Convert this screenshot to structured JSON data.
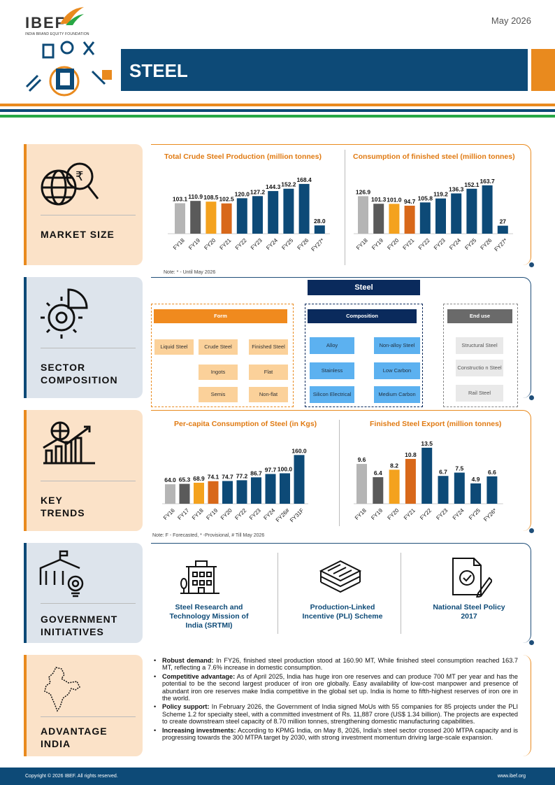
{
  "header": {
    "logo_text": "IBEF",
    "logo_subtitle": "INDIA BRAND EQUITY FOUNDATION",
    "date": "May 2026",
    "title": "STEEL"
  },
  "colors": {
    "navy": "#0d4a77",
    "orange": "#e98a1e",
    "green": "#28a745",
    "gray": "#b5b5b5"
  },
  "sections": {
    "market_size": "MARKET SIZE",
    "sector_composition": "SECTOR COMPOSITION",
    "key_trends": "KEY TRENDS",
    "government_initiatives": "GOVERNMENT INITIATIVES",
    "advantage_india": "ADVANTAGE INDIA"
  },
  "chart_data": [
    {
      "id": "crude",
      "type": "bar",
      "title": "Total Crude Steel Production (million tonnes)",
      "categories": [
        "FY18",
        "FY19",
        "FY20",
        "FY21",
        "FY22",
        "FY23",
        "FY24",
        "FY25",
        "FY26",
        "FY27*"
      ],
      "values": [
        103.1,
        110.9,
        108.5,
        102.5,
        120.0,
        127.2,
        144.3,
        152.2,
        168.4,
        28.0
      ],
      "labels": [
        "103.1",
        "110.9",
        "108.5",
        "102.5",
        "120.0",
        "127.2",
        "144.3",
        "152.2",
        "168.4",
        "28.0"
      ],
      "colors": [
        "#b5b5b5",
        "#5a5a5a",
        "#f4a21e",
        "#d8681a",
        "#0d4a77",
        "#0d4a77",
        "#0d4a77",
        "#0d4a77",
        "#0d4a77",
        "#0d4a77"
      ],
      "ylim": [
        0,
        180
      ]
    },
    {
      "id": "consumption",
      "type": "bar",
      "title": "Consumption of finished steel (million tonnes)",
      "categories": [
        "FY18",
        "FY19",
        "FY20",
        "FY21",
        "FY22",
        "FY23",
        "FY24",
        "FY25",
        "FY26",
        "FY27*"
      ],
      "values": [
        126.9,
        101.3,
        101.0,
        94.7,
        105.8,
        119.2,
        136.3,
        152.1,
        163.7,
        27
      ],
      "labels": [
        "126.9",
        "101.3",
        "101.0",
        "94.7",
        "105.8",
        "119.2",
        "136.3",
        "152.1",
        "163.7",
        "27"
      ],
      "colors": [
        "#b5b5b5",
        "#5a5a5a",
        "#f4a21e",
        "#d8681a",
        "#0d4a77",
        "#0d4a77",
        "#0d4a77",
        "#0d4a77",
        "#0d4a77",
        "#0d4a77"
      ],
      "ylim": [
        0,
        180
      ]
    },
    {
      "id": "percapita",
      "type": "bar",
      "title": "Per-capita Consumption of Steel (in Kgs)",
      "categories": [
        "FY16",
        "FY17",
        "FY18",
        "FY19",
        "FY20",
        "FY22",
        "FY23",
        "FY24",
        "FY26#",
        "FY31F"
      ],
      "values": [
        64.0,
        65.3,
        68.9,
        74.1,
        74.7,
        77.2,
        86.7,
        97.7,
        100.0,
        160.0
      ],
      "labels": [
        "64.0",
        "65.3",
        "68.9",
        "74.1",
        "74.7",
        "77.2",
        "86.7",
        "97.7",
        "100.0",
        "160.0"
      ],
      "colors": [
        "#b5b5b5",
        "#5a5a5a",
        "#f4a21e",
        "#d8681a",
        "#0d4a77",
        "#0d4a77",
        "#0d4a77",
        "#0d4a77",
        "#0d4a77",
        "#0d4a77"
      ],
      "ylim": [
        0,
        170
      ]
    },
    {
      "id": "export",
      "type": "bar",
      "title": "Finished Steel Export (million tonnes)",
      "categories": [
        "FY18",
        "FY19",
        "FY20",
        "FY21",
        "FY22",
        "FY23",
        "FY24",
        "FY25",
        "FY26*"
      ],
      "values": [
        9.6,
        6.4,
        8.2,
        10.8,
        13.5,
        6.7,
        7.5,
        4.9,
        6.6
      ],
      "labels": [
        "9.6",
        "6.4",
        "8.2",
        "10.8",
        "13.5",
        "6.7",
        "7.5",
        "4.9",
        "6.6"
      ],
      "colors": [
        "#b5b5b5",
        "#5a5a5a",
        "#f4a21e",
        "#d8681a",
        "#0d4a77",
        "#0d4a77",
        "#0d4a77",
        "#0d4a77",
        "#0d4a77"
      ],
      "ylim": [
        0,
        14.5
      ]
    }
  ],
  "notes": {
    "market": "Note: * - Until May 2026",
    "trends": "Note: F - Forecasted, * -Provisional, # Till May 2026"
  },
  "composition": {
    "root": "Steel",
    "form": {
      "header": "Form",
      "items": [
        "Liquid Steel",
        "Crude Steel",
        "Finished Steel",
        "Ingots",
        "Flat",
        "Semis",
        "Non-flat"
      ]
    },
    "composition": {
      "header": "Composition",
      "items": [
        "Alloy",
        "Non-alloy Steel",
        "Stainless",
        "Low Carbon",
        "Silicon Electrical",
        "Medium Carbon"
      ]
    },
    "end_use": {
      "header": "End use",
      "items": [
        "Structural Steel",
        "Constructio n Steel",
        "Rail Steel"
      ]
    }
  },
  "government": [
    {
      "label": "Steel Research and Technology Mission of India (SRTMI)",
      "icon": "building-icon"
    },
    {
      "label": "Production-Linked Incentive (PLI) Scheme",
      "icon": "money-stack-icon"
    },
    {
      "label": "National Steel Policy 2017",
      "icon": "policy-document-icon"
    }
  ],
  "advantage": [
    {
      "head": "Robust demand:",
      "text": " In FY26, finished steel production stood at 160.90 MT, While finished steel consumption reached 163.7 MT, reflecting a 7.6% increase in domestic consumption."
    },
    {
      "head": "Competitive advantage:",
      "text": " As of April 2025, India has huge iron ore reserves and can produce 700 MT per year and has the potential to be the second largest producer of iron ore globally. Easy availability of low-cost manpower and presence of abundant iron ore reserves make India competitive in the global set up. India is home to fifth-highest reserves of iron ore in the world."
    },
    {
      "head": "Policy support:",
      "text": " In February 2026, the Government of India signed MoUs with 55 companies for 85 projects under the PLI Scheme 1.2 for specialty steel, with a committed investment of Rs. 11,887 crore (US$ 1.34 billion). The projects are expected to create downstream steel capacity of 8.70 million tonnes, strengthening domestic manufacturing capabilities."
    },
    {
      "head": "Increasing investments:",
      "text": " According to KPMG India, on May 8, 2026, India's steel sector crossed 200 MTPA capacity and is progressing towards the 300 MTPA target by 2030, with strong investment momentum driving large-scale expansion."
    }
  ],
  "footer": {
    "copyright": "Copyright © 2026 IBEF. All rights reserved.",
    "website": "www.ibef.org"
  }
}
